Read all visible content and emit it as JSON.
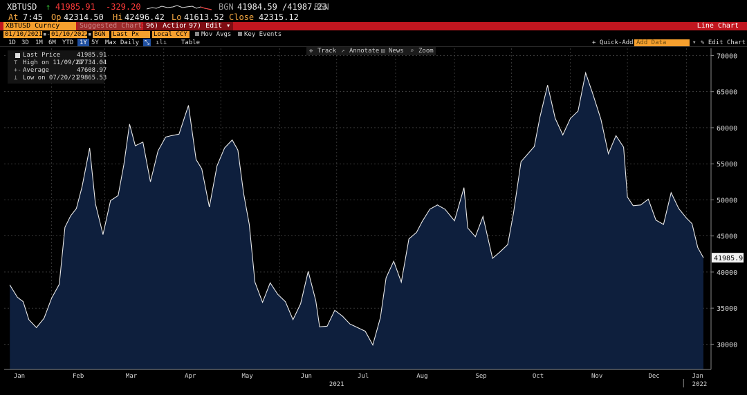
{
  "quote": {
    "ticker": "XBTUSD",
    "arrow": "↑",
    "last": "41985.91",
    "change": "-329.20",
    "source": "BGN",
    "bid_ask": "41984.59 /41987.23",
    "source2": "BGN",
    "at_label": "At",
    "at_time": "7:45",
    "op_label": "Op",
    "open": "42314.50",
    "hi_label": "Hi",
    "high": "42496.42",
    "lo_label": "Lo",
    "low": "41613.52",
    "close_label": "Close",
    "close": "42315.12"
  },
  "toolbar1": {
    "security": "XBTUSD Curncy",
    "suggested": "Suggested Charts",
    "actions": "96) Actions ▾",
    "edit": "97) Edit ▾",
    "view": "Line Chart"
  },
  "toolbar2": {
    "start_date": "01/10/2021",
    "end_date": "01/10/2022",
    "source": "BGN",
    "field": "Last Px",
    "currency": "Local CCY",
    "mov_avgs": "Mov Avgs",
    "key_events": "Key Events"
  },
  "toolbar3": {
    "periods": [
      "1D",
      "3D",
      "1M",
      "6M",
      "YTD",
      "1Y",
      "5Y",
      "Max"
    ],
    "selected": "1Y",
    "frequency": "Daily ▼",
    "table": "Table",
    "quick_add": "+ Quick-Add ·",
    "add_data_placeholder": "Add Data",
    "edit_chart": "✎ Edit Chart"
  },
  "chart_tools": {
    "track": "Track",
    "annotate": "Annotate",
    "news": "News",
    "zoom": "Zoom"
  },
  "legend": {
    "last_label": "Last Price",
    "last_value": "41985.91",
    "high_label": "High on 11/09/21",
    "high_value": "67734.04",
    "avg_label": "Average",
    "avg_value": "47608.97",
    "low_label": "Low on 07/20/21",
    "low_value": "29865.53"
  },
  "chart_data": {
    "type": "area",
    "series": [
      {
        "name": "Last Price",
        "line_color": "#e8e8e8",
        "fill_color": "#0e1f3d"
      }
    ],
    "x_unit": "date",
    "x": [
      "2021-01-10",
      "2021-01-14",
      "2021-01-17",
      "2021-01-20",
      "2021-01-24",
      "2021-01-28",
      "2021-02-01",
      "2021-02-05",
      "2021-02-08",
      "2021-02-11",
      "2021-02-14",
      "2021-02-17",
      "2021-02-21",
      "2021-02-24",
      "2021-02-28",
      "2021-03-04",
      "2021-03-08",
      "2021-03-11",
      "2021-03-14",
      "2021-03-17",
      "2021-03-21",
      "2021-03-25",
      "2021-03-29",
      "2021-04-02",
      "2021-04-05",
      "2021-04-09",
      "2021-04-14",
      "2021-04-18",
      "2021-04-21",
      "2021-04-25",
      "2021-04-29",
      "2021-05-03",
      "2021-05-07",
      "2021-05-10",
      "2021-05-13",
      "2021-05-16",
      "2021-05-19",
      "2021-05-23",
      "2021-05-27",
      "2021-05-31",
      "2021-06-04",
      "2021-06-08",
      "2021-06-12",
      "2021-06-16",
      "2021-06-20",
      "2021-06-22",
      "2021-06-26",
      "2021-06-30",
      "2021-07-04",
      "2021-07-08",
      "2021-07-12",
      "2021-07-16",
      "2021-07-20",
      "2021-07-24",
      "2021-07-27",
      "2021-07-31",
      "2021-08-04",
      "2021-08-08",
      "2021-08-12",
      "2021-08-15",
      "2021-08-19",
      "2021-08-23",
      "2021-08-27",
      "2021-09-01",
      "2021-09-06",
      "2021-09-08",
      "2021-09-12",
      "2021-09-16",
      "2021-09-21",
      "2021-09-25",
      "2021-09-29",
      "2021-10-02",
      "2021-10-06",
      "2021-10-10",
      "2021-10-13",
      "2021-10-16",
      "2021-10-20",
      "2021-10-24",
      "2021-10-28",
      "2021-11-01",
      "2021-11-05",
      "2021-11-09",
      "2021-11-13",
      "2021-11-17",
      "2021-11-21",
      "2021-11-25",
      "2021-11-29",
      "2021-12-01",
      "2021-12-04",
      "2021-12-08",
      "2021-12-12",
      "2021-12-16",
      "2021-12-20",
      "2021-12-24",
      "2021-12-28",
      "2022-01-01",
      "2022-01-04",
      "2022-01-07",
      "2022-01-10"
    ],
    "y": [
      38200,
      36500,
      35900,
      33400,
      32300,
      33600,
      36400,
      38300,
      46200,
      47800,
      48800,
      51800,
      57200,
      49500,
      45200,
      49900,
      50600,
      54900,
      60500,
      57500,
      58000,
      52500,
      56800,
      58700,
      58900,
      59100,
      63100,
      55600,
      54300,
      49000,
      54700,
      57200,
      58300,
      56900,
      50900,
      46600,
      38600,
      35800,
      38500,
      36900,
      35900,
      33400,
      35600,
      40100,
      36000,
      32400,
      32500,
      34700,
      33900,
      32800,
      32300,
      31800,
      29900,
      33700,
      39200,
      41500,
      38600,
      44600,
      45500,
      47000,
      48700,
      49300,
      48700,
      47100,
      51700,
      46100,
      44900,
      47700,
      41900,
      42800,
      43800,
      48100,
      55300,
      56500,
      57400,
      61500,
      65900,
      61300,
      59000,
      61300,
      62300,
      67600,
      64500,
      61200,
      56400,
      58900,
      57300,
      50400,
      49200,
      49300,
      50100,
      47200,
      46600,
      51000,
      48800,
      47500,
      46700,
      43400,
      41985
    ],
    "ylim": [
      26500,
      71000
    ],
    "y_ticks": [
      30000,
      35000,
      40000,
      45000,
      50000,
      55000,
      60000,
      65000,
      70000
    ],
    "x_tick_labels": [
      "Jan",
      "Feb",
      "Mar",
      "Apr",
      "May",
      "Jun",
      "Jul",
      "Aug",
      "Sep",
      "Oct",
      "Nov",
      "Dec",
      "Jan"
    ],
    "x_tick_dates": [
      "2021-01-15",
      "2021-02-15",
      "2021-03-15",
      "2021-04-15",
      "2021-05-15",
      "2021-06-15",
      "2021-07-15",
      "2021-08-15",
      "2021-09-15",
      "2021-10-15",
      "2021-11-15",
      "2021-12-15",
      "2022-01-07"
    ],
    "year_labels": [
      {
        "label": "2021",
        "date": "2021-07-01"
      },
      {
        "label": "2022",
        "date": "2022-01-08"
      }
    ],
    "last_value_label": "41985.91",
    "grid": true,
    "legend_position": "top-left"
  }
}
